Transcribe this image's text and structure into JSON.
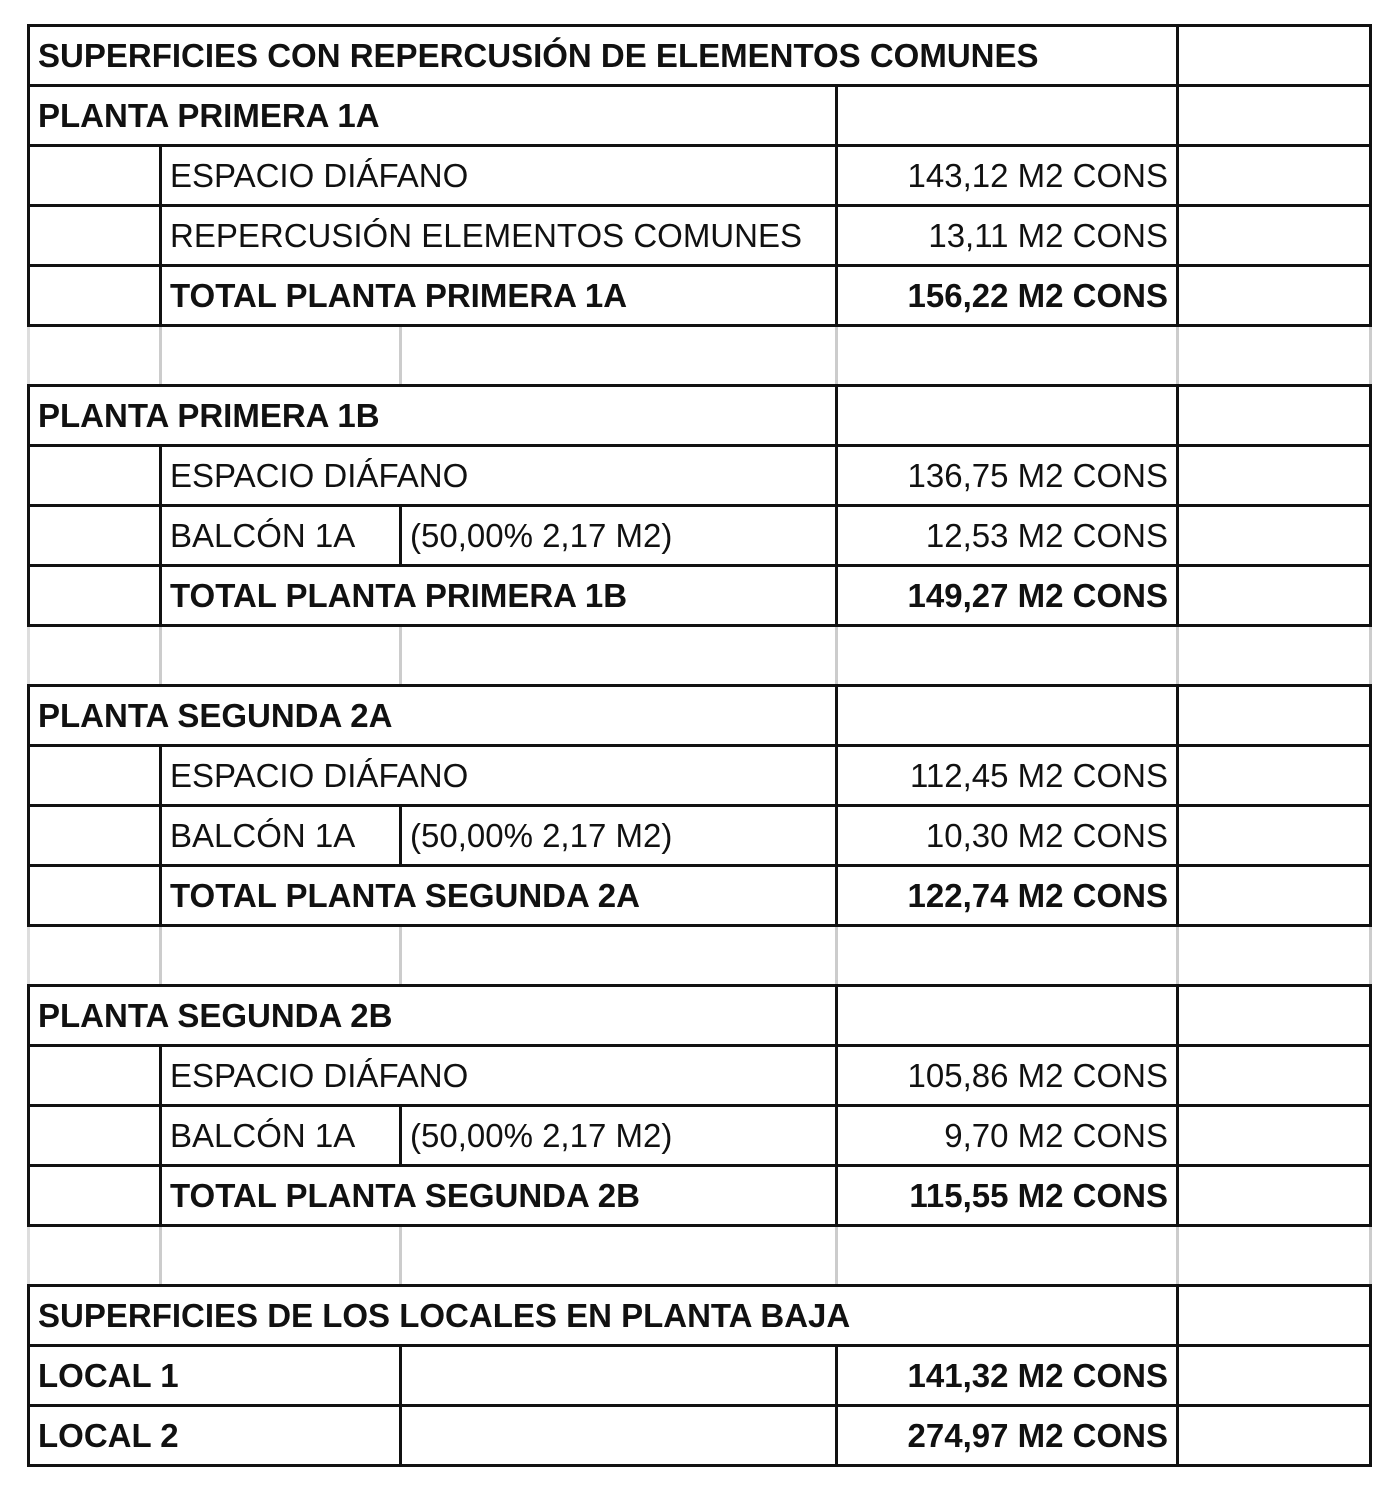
{
  "title": "SUPERFICIES CON REPERCUSIÓN DE ELEMENTOS COMUNES",
  "sections": [
    {
      "header": "PLANTA PRIMERA 1A",
      "rows": [
        {
          "label": "ESPACIO DIÁFANO",
          "note": "",
          "value": "143,12 M2 CONS"
        },
        {
          "label": "REPERCUSIÓN ELEMENTOS COMUNES",
          "note": "",
          "value": "13,11 M2 CONS"
        }
      ],
      "total_label": "TOTAL PLANTA PRIMERA 1A",
      "total_value": "156,22 M2 CONS"
    },
    {
      "header": "PLANTA PRIMERA 1B",
      "rows": [
        {
          "label": "ESPACIO DIÁFANO",
          "note": "",
          "value": "136,75 M2 CONS"
        },
        {
          "label": "BALCÓN 1A",
          "note": "(50,00% 2,17 M2)",
          "value": "12,53 M2 CONS"
        }
      ],
      "total_label": "TOTAL PLANTA PRIMERA 1B",
      "total_value": "149,27 M2 CONS"
    },
    {
      "header": "PLANTA SEGUNDA 2A",
      "rows": [
        {
          "label": "ESPACIO DIÁFANO",
          "note": "",
          "value": "112,45 M2 CONS"
        },
        {
          "label": "BALCÓN 1A",
          "note": "(50,00% 2,17 M2)",
          "value": "10,30 M2 CONS"
        }
      ],
      "total_label": "TOTAL PLANTA SEGUNDA 2A",
      "total_value": "122,74 M2 CONS"
    },
    {
      "header": "PLANTA SEGUNDA 2B",
      "rows": [
        {
          "label": "ESPACIO DIÁFANO",
          "note": "",
          "value": "105,86 M2 CONS"
        },
        {
          "label": "BALCÓN 1A",
          "note": "(50,00% 2,17 M2)",
          "value": "9,70 M2 CONS"
        }
      ],
      "total_label": "TOTAL PLANTA SEGUNDA 2B",
      "total_value": "115,55 M2 CONS"
    }
  ],
  "locales": {
    "title": "SUPERFICIES DE LOS LOCALES EN PLANTA BAJA",
    "items": [
      {
        "label": "LOCAL 1",
        "value": "141,32 M2 CONS"
      },
      {
        "label": "LOCAL 2",
        "value": "274,97 M2 CONS"
      }
    ]
  }
}
